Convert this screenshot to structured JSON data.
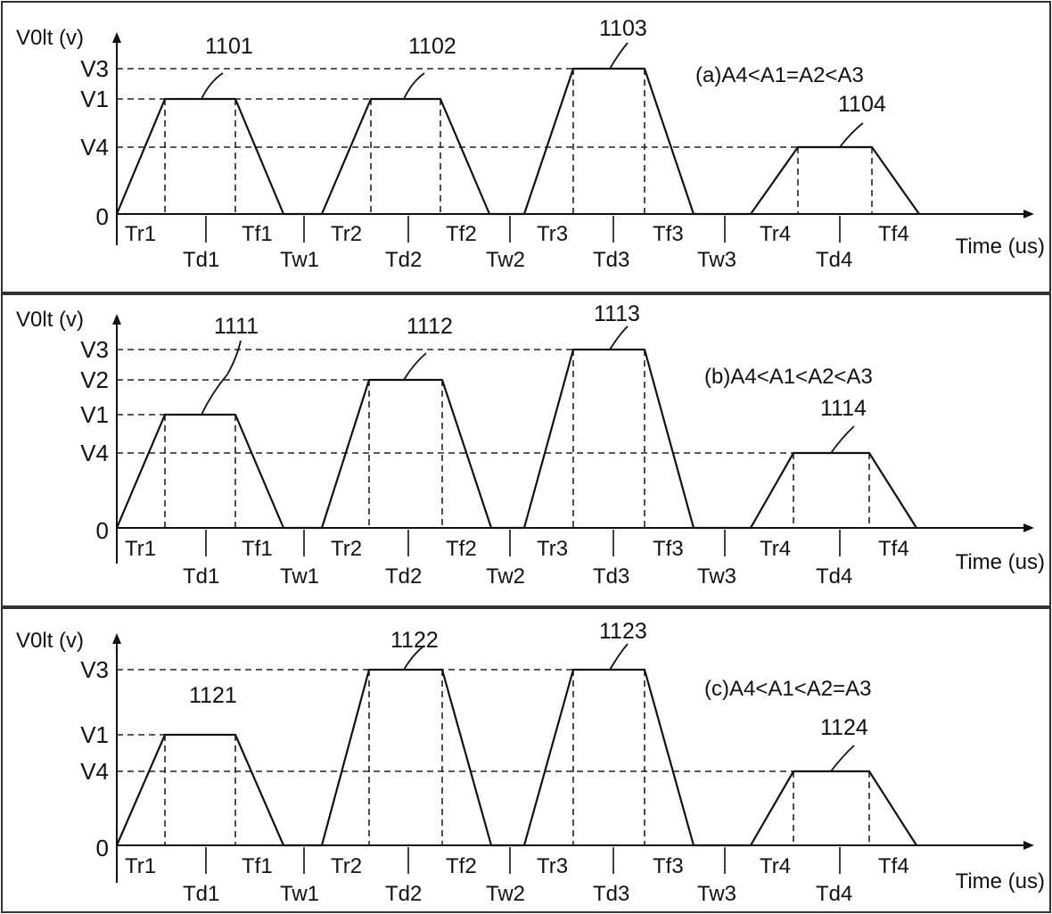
{
  "figure": {
    "panels": [
      {
        "condition": "(a)A4<A1=A2<A3",
        "y_axis_label": "V0lt (v)",
        "x_axis_label": "Time (us)",
        "level_labels": [
          "V3",
          "V1",
          "V4",
          "0"
        ],
        "pulses": [
          {
            "ref": "1101",
            "level": "V1"
          },
          {
            "ref": "1102",
            "level": "V1"
          },
          {
            "ref": "1103",
            "level": "V3"
          },
          {
            "ref": "1104",
            "level": "V4"
          }
        ],
        "segments_upper": [
          "Tr1",
          "Tf1",
          "Tr2",
          "Tf2",
          "Tr3",
          "Tf3",
          "Tr4",
          "Tf4"
        ],
        "segments_lower": [
          "Td1",
          "Tw1",
          "Td2",
          "Tw2",
          "Td3",
          "Tw3",
          "Td4"
        ]
      },
      {
        "condition": "(b)A4<A1<A2<A3",
        "y_axis_label": "V0lt (v)",
        "x_axis_label": "Time (us)",
        "level_labels": [
          "V3",
          "V2",
          "V1",
          "V4",
          "0"
        ],
        "pulses": [
          {
            "ref": "1111",
            "level": "V1"
          },
          {
            "ref": "1112",
            "level": "V2"
          },
          {
            "ref": "1113",
            "level": "V3"
          },
          {
            "ref": "1114",
            "level": "V4"
          }
        ],
        "segments_upper": [
          "Tr1",
          "Tf1",
          "Tr2",
          "Tf2",
          "Tr3",
          "Tf3",
          "Tr4",
          "Tf4"
        ],
        "segments_lower": [
          "Td1",
          "Tw1",
          "Td2",
          "Tw2",
          "Td3",
          "Tw3",
          "Td4"
        ]
      },
      {
        "condition": "(c)A4<A1<A2=A3",
        "y_axis_label": "V0lt (v)",
        "x_axis_label": "Time (us)",
        "level_labels": [
          "V3",
          "V1",
          "V4",
          "0"
        ],
        "pulses": [
          {
            "ref": "1121",
            "level": "V1"
          },
          {
            "ref": "1122",
            "level": "V3"
          },
          {
            "ref": "1123",
            "level": "V3"
          },
          {
            "ref": "1124",
            "level": "V4"
          }
        ],
        "segments_upper": [
          "Tr1",
          "Tf1",
          "Tr2",
          "Tf2",
          "Tr3",
          "Tf3",
          "Tr4",
          "Tf4"
        ],
        "segments_lower": [
          "Td1",
          "Tw1",
          "Td2",
          "Tw2",
          "Td3",
          "Tw3",
          "Td4"
        ]
      }
    ]
  }
}
